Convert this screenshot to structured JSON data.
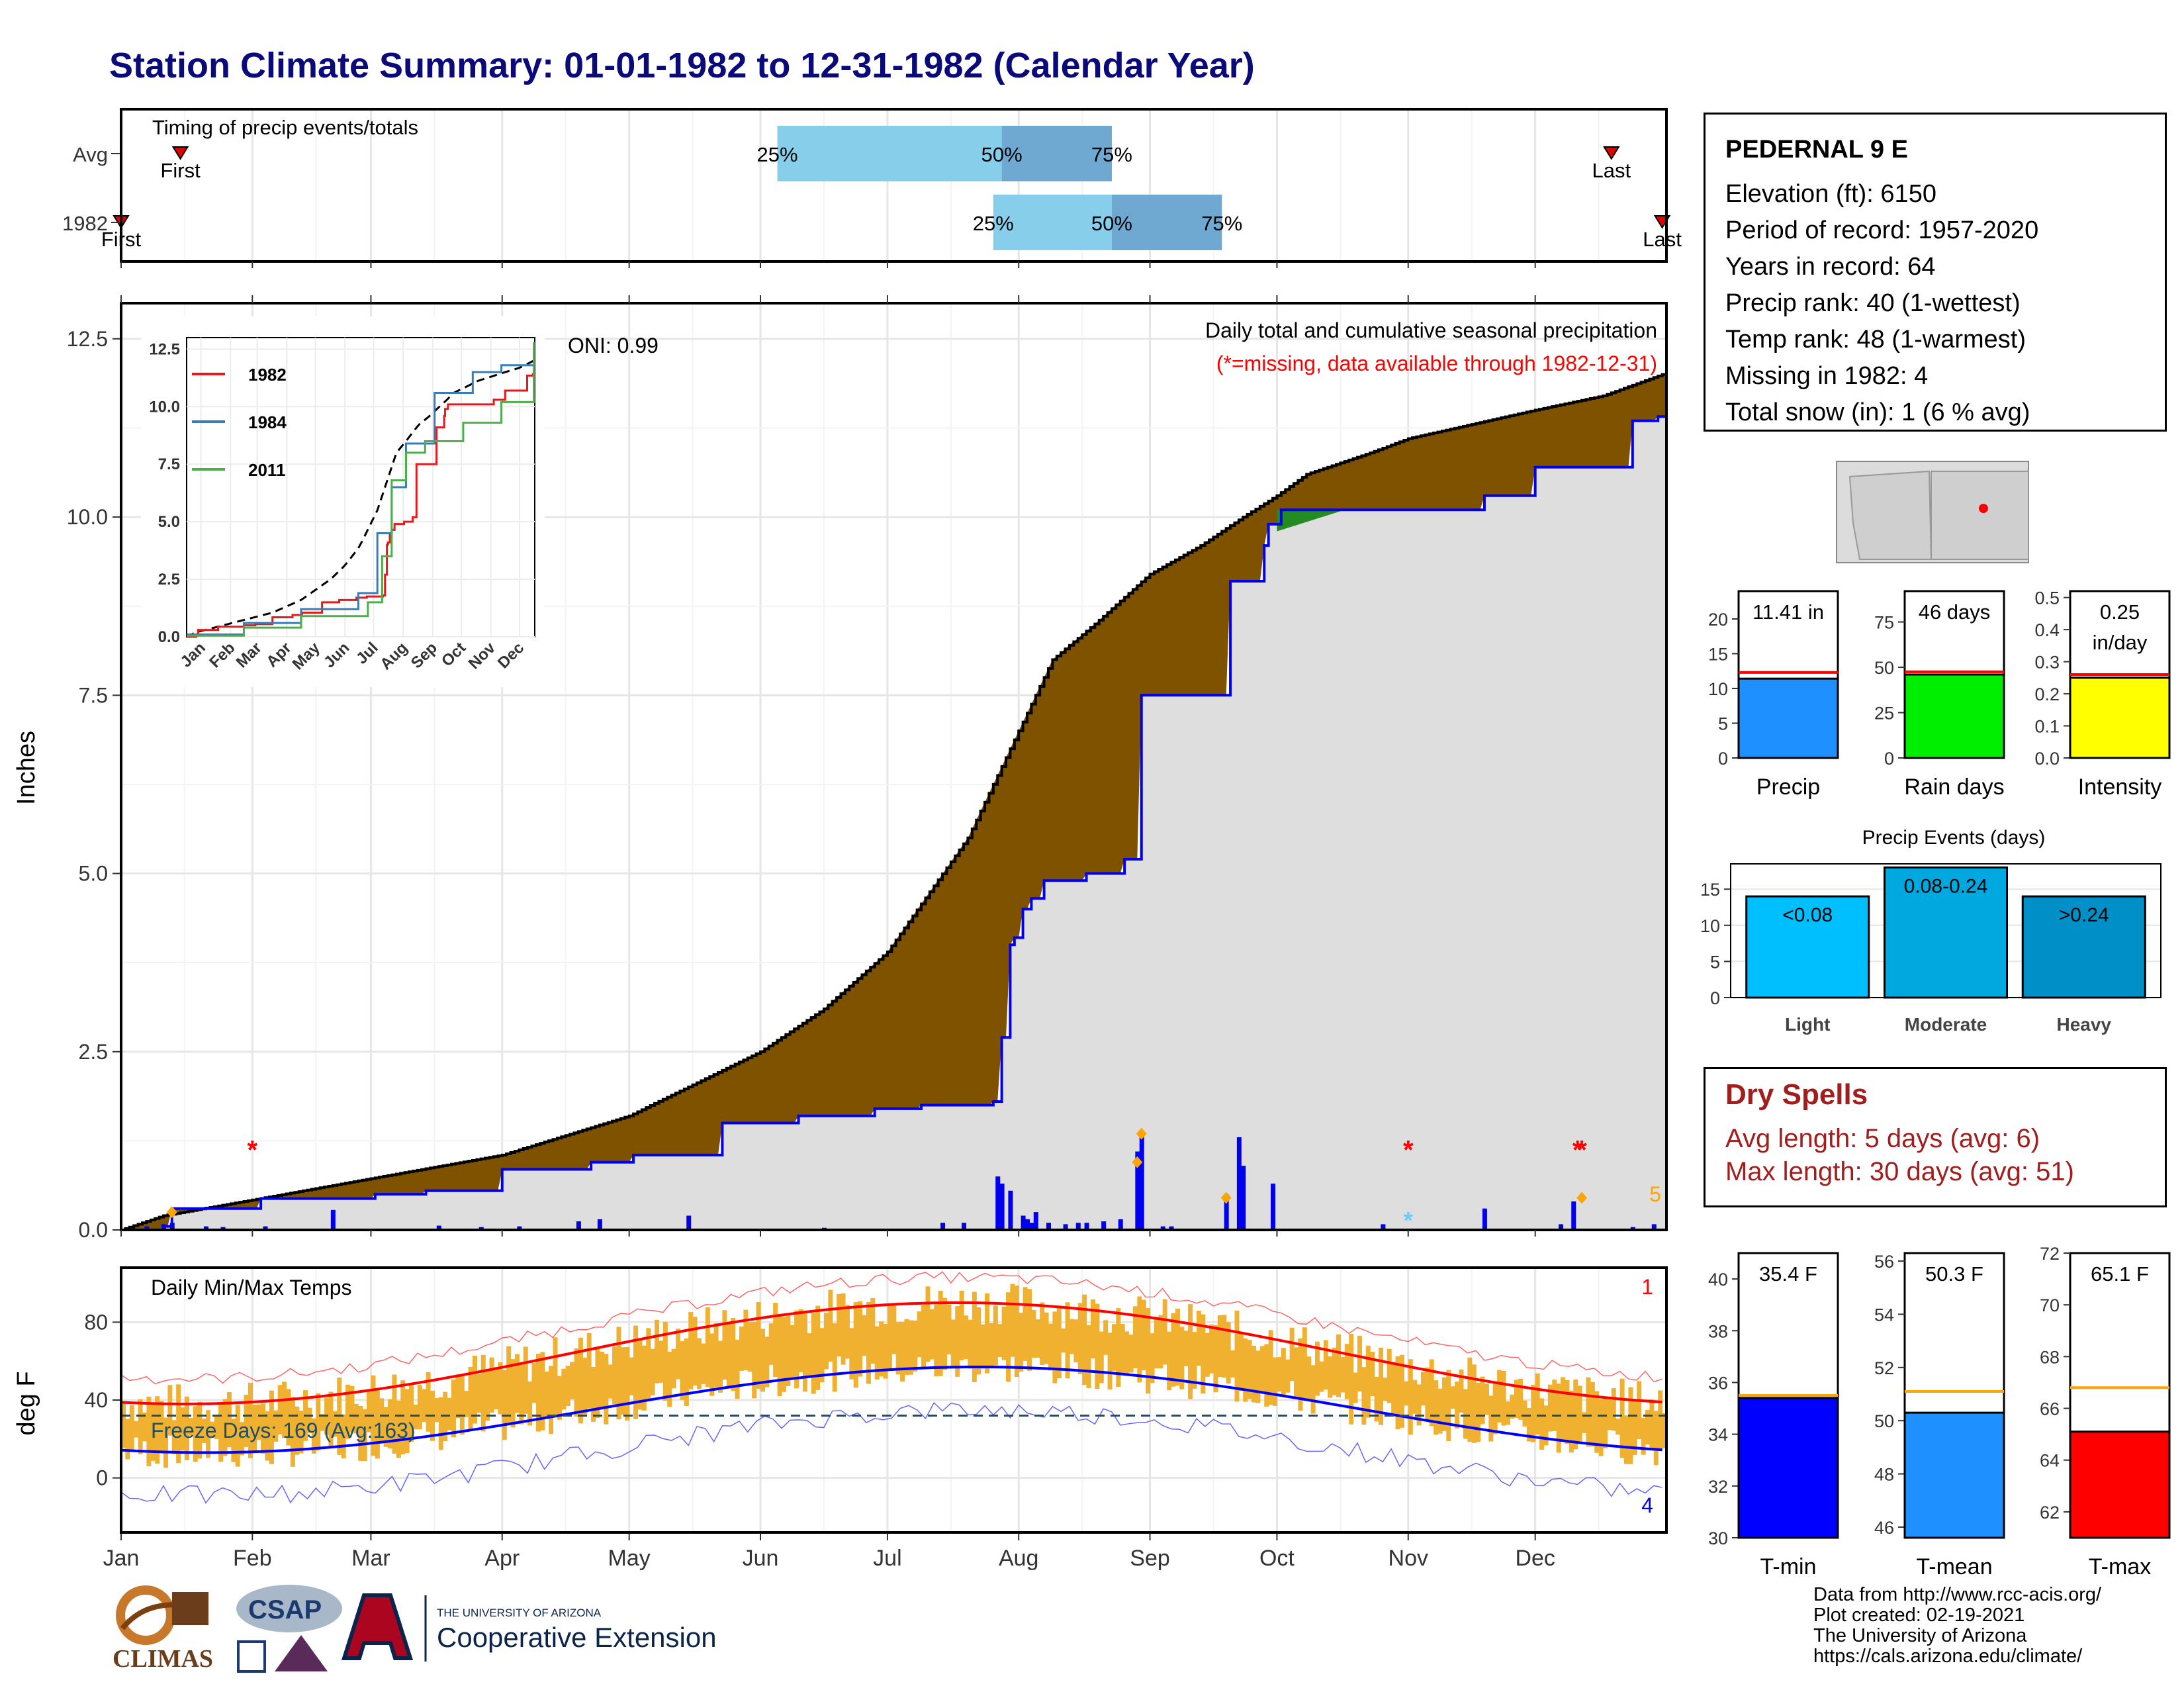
{
  "title": "Station Climate Summary: 01-01-1982 to 12-31-1982 (Calendar Year)",
  "station": {
    "name": "PEDERNAL 9 E",
    "lines": [
      "Elevation (ft): 6150",
      "Period of record: 1957-2020",
      "Years in record: 64",
      "Precip rank: 40 (1-wettest)",
      "Temp rank: 48 (1-warmest)",
      "Missing in 1982: 4",
      "Total snow (in): 1 (6 % avg)"
    ]
  },
  "dry_spells": {
    "heading": "Dry Spells",
    "avg": "Avg length: 5 days (avg: 6)",
    "max": "Max length: 30 days (avg: 51)"
  },
  "credits": [
    "Data from http://www.rcc-acis.org/",
    "Plot created: 02-19-2021",
    "The University of Arizona",
    "https://cals.arizona.edu/climate/"
  ],
  "logos": {
    "climas": "CLIMAS",
    "csap": "CSAP",
    "ua_line1": "THE UNIVERSITY OF ARIZONA",
    "ua_line2": "Cooperative Extension"
  },
  "colors": {
    "light_blue": "#87ceeb",
    "mid_blue": "#6fa8d0",
    "brown": "#7f5200",
    "gray_fill": "#dedede",
    "precip_blue": "#1e90ff",
    "rain_green": "#00ee00",
    "intensity_yellow": "#ffff00",
    "tmin_blue": "#0000ff",
    "tmax_red": "#ff0000",
    "bar_orange": "#f0b030"
  },
  "months": [
    "Jan",
    "Feb",
    "Mar",
    "Apr",
    "May",
    "Jun",
    "Jul",
    "Aug",
    "Sep",
    "Oct",
    "Nov",
    "Dec"
  ],
  "chart_data": [
    {
      "id": "timing",
      "type": "bar",
      "title": "Timing of precip events/totals",
      "rows": [
        "Avg",
        "1982"
      ],
      "quartiles": {
        "Avg": {
          "q25": "Jun-05",
          "q50": "Jul-28",
          "q75": "Aug-23"
        },
        "1982": {
          "q25": "Jul-26",
          "q50": "Aug-23",
          "q75": "Sep-18"
        }
      },
      "quartile_labels": [
        "25%",
        "50%",
        "75%"
      ],
      "first_last": {
        "Avg": {
          "first": "First",
          "first_date": "Jan-15",
          "last": "Last",
          "last_date": "Dec-19"
        },
        "1982": {
          "first": "First",
          "first_date": "Jan-01",
          "last": "Last",
          "last_date": "Dec-31"
        }
      }
    },
    {
      "id": "cumulative-precip",
      "type": "area",
      "ylabel": "Inches",
      "ylim": [
        0,
        13.0
      ],
      "yticks": [
        "0.0",
        "2.5",
        "5.0",
        "7.5",
        "10.0",
        "12.5"
      ],
      "caption": "Daily total and cumulative seasonal precipitation",
      "missing_note": "(*=missing, data available through 1982-12-31)",
      "oni": "ONI: 0.99",
      "corner_count": "5",
      "series": [
        {
          "name": "avg-cumulative",
          "days": [
            0,
            10,
            31,
            59,
            90,
            120,
            151,
            166,
            181,
            200,
            212,
            220,
            230,
            243,
            255,
            265,
            273,
            280,
            295,
            304,
            334,
            350,
            364
          ],
          "values": [
            0.0,
            0.2,
            0.42,
            0.72,
            1.05,
            1.6,
            2.5,
            3.1,
            3.9,
            5.5,
            7.0,
            8.0,
            8.5,
            9.2,
            9.6,
            10.0,
            10.3,
            10.6,
            10.9,
            11.1,
            11.5,
            11.7,
            12.0
          ]
        },
        {
          "name": "1982-cumulative",
          "days": [
            0,
            10,
            12,
            33,
            60,
            72,
            90,
            111,
            121,
            142,
            160,
            178,
            189,
            206,
            208,
            210,
            211,
            213,
            215,
            218,
            228,
            237,
            241,
            245,
            261,
            262,
            270,
            271,
            274,
            289,
            322,
            334,
            342,
            345,
            357,
            363,
            364
          ],
          "values": [
            0.0,
            0.05,
            0.3,
            0.44,
            0.5,
            0.55,
            0.85,
            0.95,
            1.05,
            1.5,
            1.6,
            1.7,
            1.75,
            1.8,
            2.7,
            4.0,
            4.1,
            4.5,
            4.65,
            4.9,
            5.0,
            5.2,
            7.5,
            7.5,
            7.5,
            9.1,
            9.6,
            9.9,
            10.1,
            10.1,
            10.3,
            10.7,
            10.7,
            10.7,
            11.35,
            11.41,
            11.41
          ]
        },
        {
          "name": "daily-precip",
          "days": [
            6,
            10,
            12,
            20,
            24,
            34,
            50,
            75,
            85,
            94,
            108,
            113,
            134,
            166,
            194,
            199,
            207,
            208,
            210,
            213,
            214,
            215,
            216,
            219,
            223,
            226,
            228,
            232,
            236,
            240,
            241,
            246,
            248,
            261,
            264,
            265,
            272,
            298,
            322,
            340,
            343,
            357,
            362
          ],
          "values": [
            0.05,
            0.08,
            0.1,
            0.05,
            0.04,
            0.05,
            0.28,
            0.06,
            0.04,
            0.05,
            0.12,
            0.15,
            0.2,
            0.03,
            0.1,
            0.1,
            0.75,
            0.65,
            0.55,
            0.2,
            0.15,
            0.1,
            0.25,
            0.1,
            0.08,
            0.1,
            0.1,
            0.12,
            0.15,
            1.1,
            1.35,
            0.05,
            0.05,
            0.5,
            1.3,
            0.9,
            0.65,
            0.08,
            0.3,
            0.08,
            0.4,
            0.04,
            0.08
          ]
        }
      ],
      "missing_days": [
        31,
        304,
        344,
        345
      ],
      "snow_days": [
        304
      ],
      "diamond_days": [
        {
          "day": 12,
          "value": 0.25
        },
        {
          "day": 240,
          "value": 0.95
        },
        {
          "day": 241,
          "value": 1.35
        },
        {
          "day": 261,
          "value": 0.45
        },
        {
          "day": 345,
          "value": 0.45
        }
      ],
      "inset": {
        "type": "line",
        "yticks": [
          "0.0",
          "2.5",
          "5.0",
          "7.5",
          "10.0",
          "12.5"
        ],
        "series": [
          {
            "name": "1982",
            "color": "#e41a1c"
          },
          {
            "name": "1984",
            "color": "#377eb8"
          },
          {
            "name": "2011",
            "color": "#4daf4a"
          }
        ]
      }
    },
    {
      "id": "daily-temps",
      "type": "line",
      "title": "Daily Min/Max Temps",
      "ylabel": "deg F",
      "ylim": [
        -28,
        108
      ],
      "yticks": [
        "0",
        "40",
        "80"
      ],
      "freeze_text": "Freeze Days: 169 (Avg:163)",
      "freeze_line": 32,
      "corner_max": "1",
      "corner_min": "4"
    },
    {
      "id": "precip-summary",
      "type": "bar",
      "panels": [
        {
          "label": "Precip",
          "value_text": "11.41 in",
          "value": 11.41,
          "avg": 12.3,
          "ylim": [
            0,
            24
          ],
          "yticks": [
            "0",
            "5",
            "10",
            "15",
            "20"
          ]
        },
        {
          "label": "Rain days",
          "value_text": "46 days",
          "value": 46,
          "avg": 47.5,
          "ylim": [
            0,
            92
          ],
          "yticks": [
            "0",
            "25",
            "50",
            "75"
          ]
        },
        {
          "label": "Intensity",
          "value_text": "0.25 in/day",
          "value_line1": "0.25",
          "value_line2": "in/day",
          "value": 0.25,
          "avg": 0.26,
          "ylim": [
            0,
            0.52
          ],
          "yticks": [
            "0.0",
            "0.1",
            "0.2",
            "0.3",
            "0.4",
            "0.5"
          ]
        }
      ]
    },
    {
      "id": "precip-events",
      "type": "bar",
      "title": "Precip Events (days)",
      "categories": [
        "Light",
        "Moderate",
        "Heavy"
      ],
      "labels": [
        "<0.08",
        "0.08-0.24",
        ">0.24"
      ],
      "values": [
        14,
        18,
        14
      ],
      "ylim": [
        0,
        18.5
      ],
      "yticks": [
        "0",
        "5",
        "10",
        "15"
      ]
    },
    {
      "id": "temp-summary",
      "type": "bar",
      "panels": [
        {
          "label": "T-min",
          "value_text": "35.4 F",
          "value": 35.4,
          "avg": 35.5,
          "ylim": [
            30,
            41
          ],
          "yticks": [
            "30",
            "32",
            "34",
            "36",
            "38",
            "40"
          ]
        },
        {
          "label": "T-mean",
          "value_text": "50.3 F",
          "value": 50.3,
          "avg": 51.1,
          "ylim": [
            45.6,
            56.3
          ],
          "yticks": [
            "46",
            "48",
            "50",
            "52",
            "54",
            "56"
          ]
        },
        {
          "label": "T-max",
          "value_text": "65.1 F",
          "value": 65.1,
          "avg": 66.8,
          "ylim": [
            61,
            72
          ],
          "yticks": [
            "62",
            "64",
            "66",
            "68",
            "70",
            "72"
          ]
        }
      ]
    }
  ]
}
